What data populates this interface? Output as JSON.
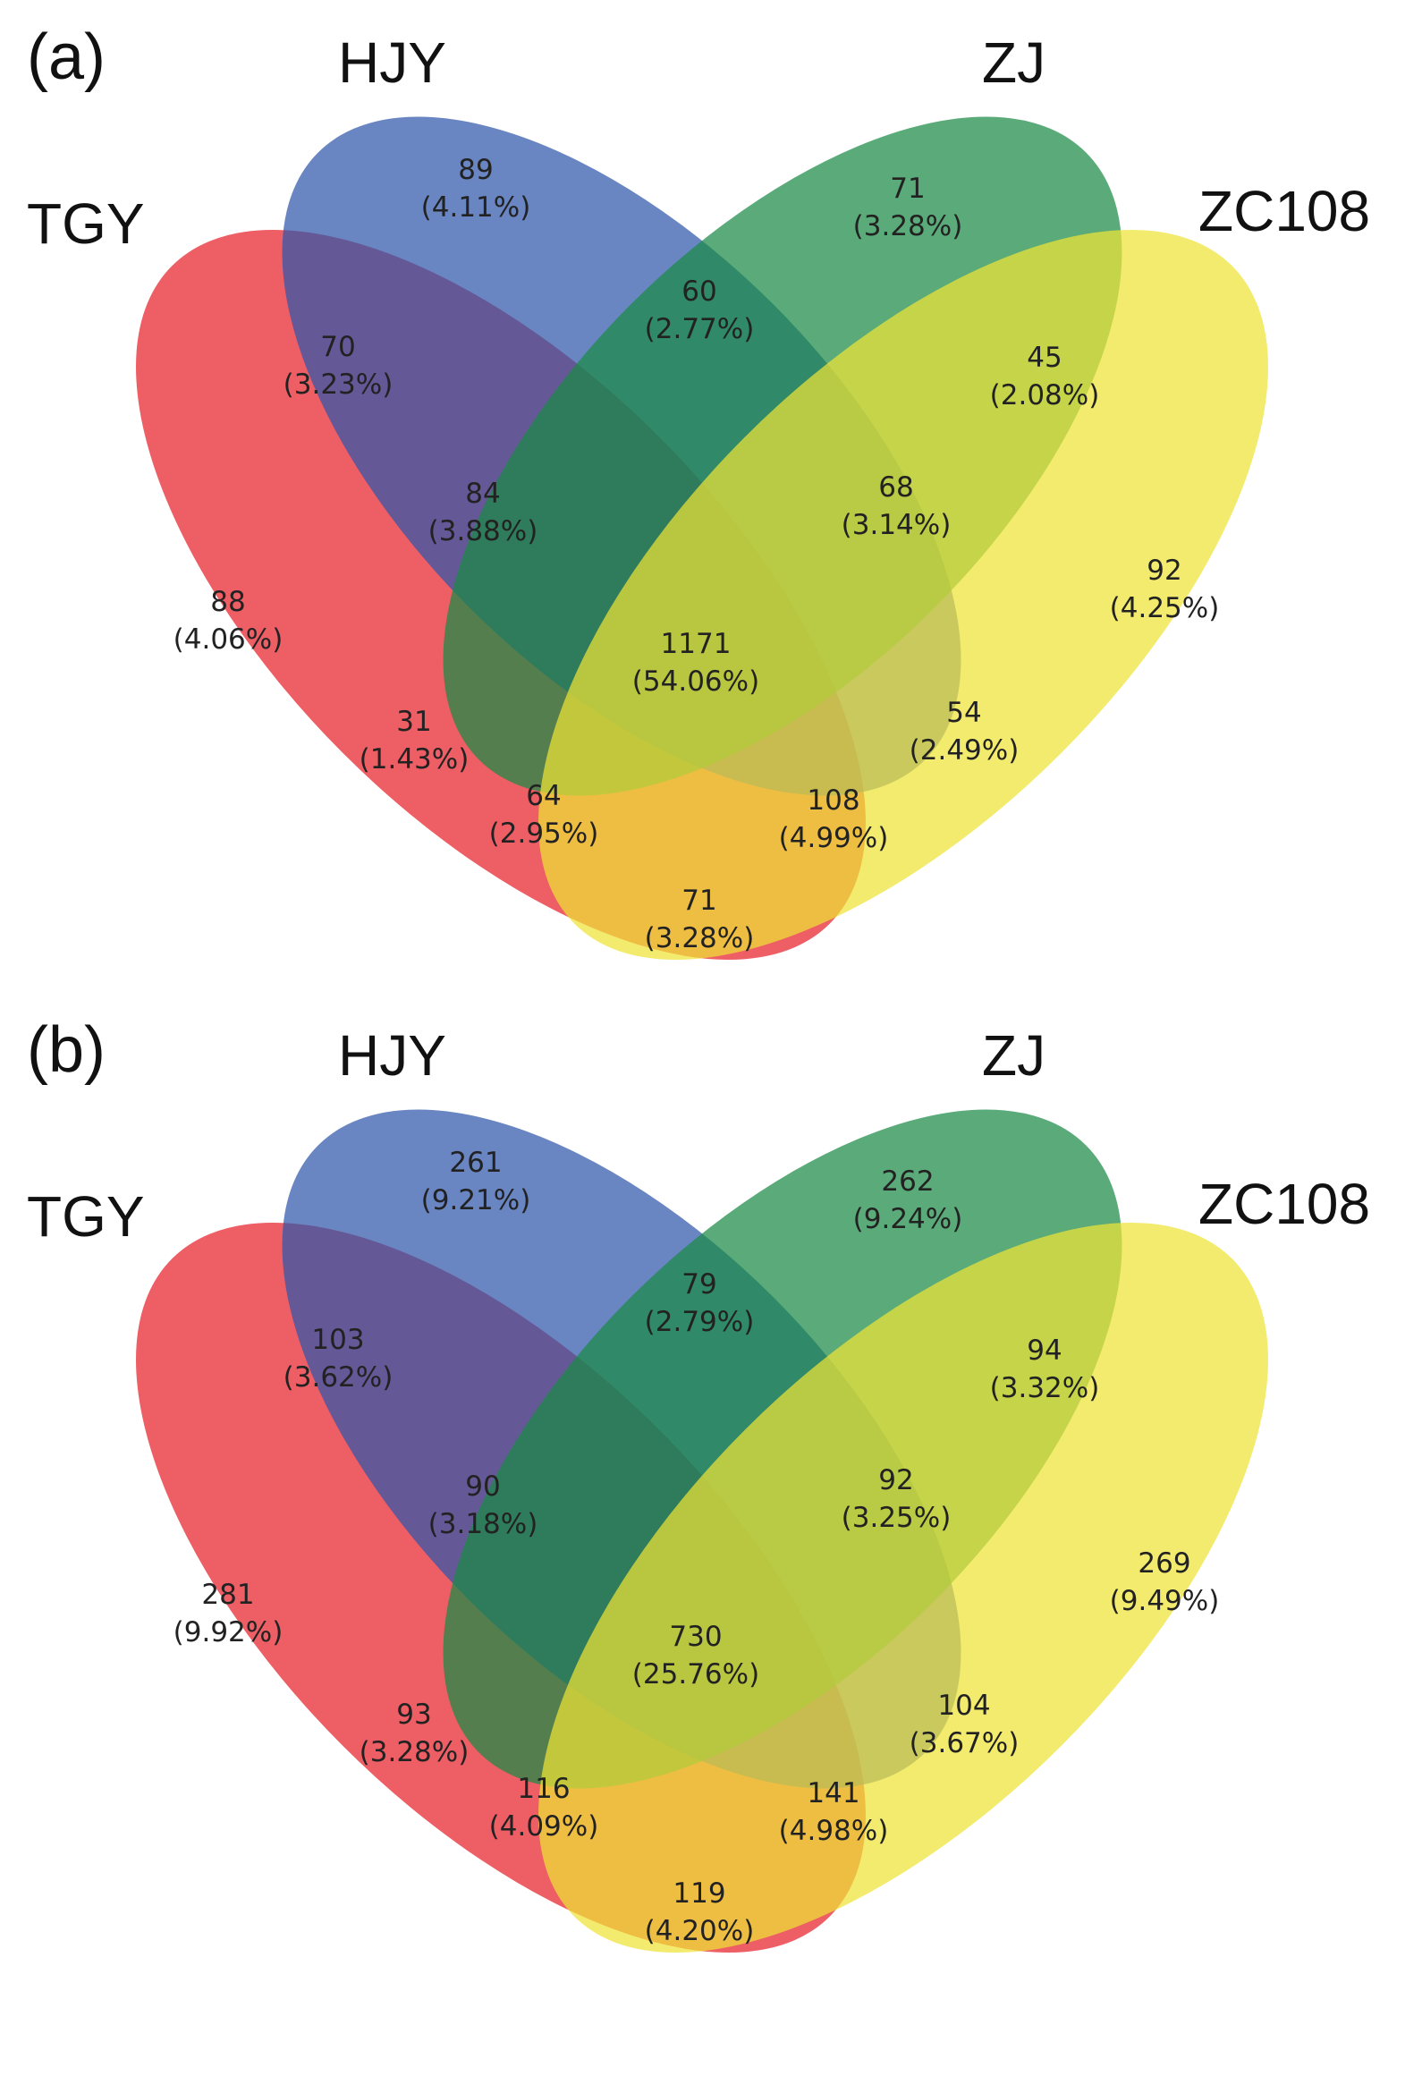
{
  "colors": {
    "TGY": "#e8202a",
    "HJY": "#2f56aa",
    "ZJ": "#1a8a45",
    "ZC108": "#efe336"
  },
  "panels": [
    {
      "label": "(a)",
      "sets": [
        "TGY",
        "HJY",
        "ZJ",
        "ZC108"
      ],
      "regions": {
        "hjy": {
          "count": "89",
          "pct": "(4.11%)"
        },
        "zj": {
          "count": "71",
          "pct": "(3.28%)"
        },
        "hjy_zj": {
          "count": "60",
          "pct": "(2.77%)"
        },
        "tgy_hjy": {
          "count": "70",
          "pct": "(3.23%)"
        },
        "zj_zc": {
          "count": "45",
          "pct": "(2.08%)"
        },
        "tgy_hjy_zj": {
          "count": "84",
          "pct": "(3.88%)"
        },
        "hjy_zj_zc": {
          "count": "68",
          "pct": "(3.14%)"
        },
        "tgy": {
          "count": "88",
          "pct": "(4.06%)"
        },
        "zc": {
          "count": "92",
          "pct": "(4.25%)"
        },
        "all": {
          "count": "1171",
          "pct": "(54.06%)"
        },
        "tgy_zj": {
          "count": "31",
          "pct": "(1.43%)"
        },
        "hjy_zc": {
          "count": "54",
          "pct": "(2.49%)"
        },
        "tgy_zj_zc": {
          "count": "64",
          "pct": "(2.95%)"
        },
        "tgy_hjy_zc": {
          "count": "108",
          "pct": "(4.99%)"
        },
        "tgy_zc": {
          "count": "71",
          "pct": "(3.28%)"
        }
      }
    },
    {
      "label": "(b)",
      "sets": [
        "TGY",
        "HJY",
        "ZJ",
        "ZC108"
      ],
      "regions": {
        "hjy": {
          "count": "261",
          "pct": "(9.21%)"
        },
        "zj": {
          "count": "262",
          "pct": "(9.24%)"
        },
        "hjy_zj": {
          "count": "79",
          "pct": "(2.79%)"
        },
        "tgy_hjy": {
          "count": "103",
          "pct": "(3.62%)"
        },
        "zj_zc": {
          "count": "94",
          "pct": "(3.32%)"
        },
        "tgy_hjy_zj": {
          "count": "90",
          "pct": "(3.18%)"
        },
        "hjy_zj_zc": {
          "count": "92",
          "pct": "(3.25%)"
        },
        "tgy": {
          "count": "281",
          "pct": "(9.92%)"
        },
        "zc": {
          "count": "269",
          "pct": "(9.49%)"
        },
        "all": {
          "count": "730",
          "pct": "(25.76%)"
        },
        "tgy_zj": {
          "count": "93",
          "pct": "(3.28%)"
        },
        "hjy_zc": {
          "count": "104",
          "pct": "(3.67%)"
        },
        "tgy_zj_zc": {
          "count": "116",
          "pct": "(4.09%)"
        },
        "tgy_hjy_zc": {
          "count": "141",
          "pct": "(4.98%)"
        },
        "tgy_zc": {
          "count": "119",
          "pct": "(4.20%)"
        }
      }
    }
  ]
}
